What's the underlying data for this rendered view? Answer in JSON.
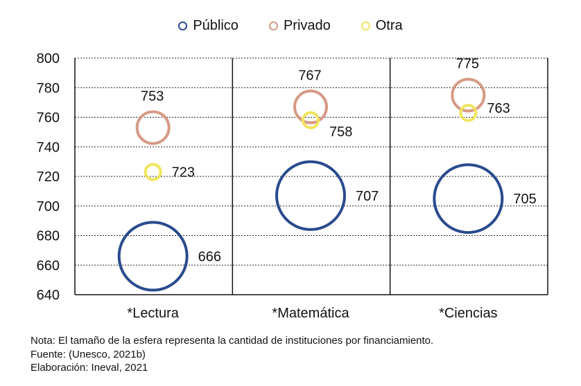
{
  "chart_data": {
    "type": "bubble",
    "categories": [
      "*Lectura",
      "*Matemática",
      "*Ciencias"
    ],
    "series": [
      {
        "name": "Público",
        "color": "#2a4b8d",
        "values": [
          666,
          707,
          705
        ],
        "labels": [
          "666",
          "707",
          "705"
        ],
        "size": "large"
      },
      {
        "name": "Privado",
        "color": "#d69a85",
        "values": [
          753,
          767,
          775
        ],
        "labels": [
          "753",
          "767",
          "775"
        ],
        "size": "medium"
      },
      {
        "name": "Otra",
        "color": "#f2e35c",
        "values": [
          723,
          758,
          763
        ],
        "labels": [
          "723",
          "758",
          "763"
        ],
        "size": "small"
      }
    ],
    "ylim": [
      640,
      800
    ],
    "yticks": [
      "640",
      "660",
      "680",
      "700",
      "720",
      "740",
      "760",
      "780",
      "800"
    ],
    "grid": "dashed horizontal",
    "legend_position": "top"
  },
  "notes": {
    "nota": "Nota: El tamaño de la esfera representa la cantidad de instituciones por financiamiento.",
    "fuente": "Fuente: (Unesco, 2021b)",
    "elaboracion": "Elaboración: Ineval, 2021"
  }
}
